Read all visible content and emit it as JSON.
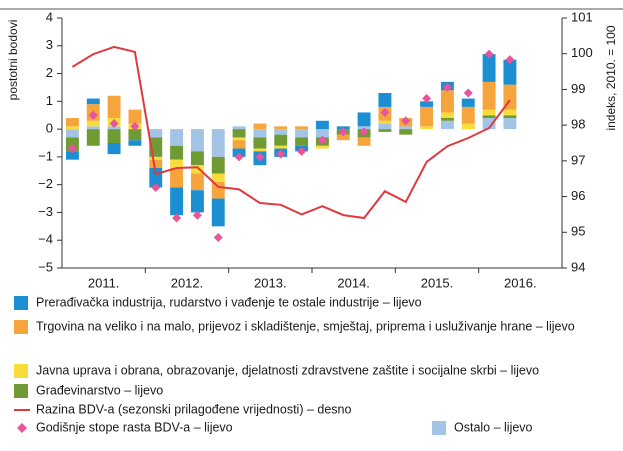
{
  "chart_data": {
    "type": "stacked-bar-line",
    "y_label": "postotni bodovi",
    "y2_label": "indeks, 2010. = 100",
    "years": [
      "2011.",
      "2012.",
      "2013.",
      "2014.",
      "2015.",
      "2016."
    ],
    "ylim": [
      -5,
      4
    ],
    "yticks": [
      {
        "value": -5,
        "label": "−5"
      },
      {
        "value": -4,
        "label": "−4"
      },
      {
        "value": -3,
        "label": "−3"
      },
      {
        "value": -2,
        "label": "−2"
      },
      {
        "value": -1,
        "label": "−1"
      },
      0,
      1,
      2,
      3,
      4
    ],
    "y2lim": [
      94,
      101
    ],
    "y2ticks": [
      94,
      95,
      96,
      97,
      98,
      99,
      100,
      101
    ],
    "series": [
      {
        "name": "Prerađivačka industrija, rudarstvo i vađenje te ostale industrije – lijevo",
        "color": "#1b8fd2",
        "values": [
          -0.3,
          0.2,
          -0.4,
          -0.2,
          -0.7,
          -1.0,
          -0.8,
          -1.0,
          -0.3,
          -0.5,
          -0.3,
          -0.2,
          0.3,
          0.1,
          0.5,
          0.5,
          0.0,
          0.2,
          0.3,
          0.3,
          1.0,
          0.9
        ]
      },
      {
        "name": "Trgovina na veliko i na malo, prijevoz i skladištenje, smještaj, priprema i usluživanje hrane – lijevo",
        "color": "#f6a43c",
        "values": [
          0.3,
          0.6,
          0.8,
          0.5,
          -0.3,
          -0.7,
          -0.6,
          -0.6,
          -0.3,
          0.2,
          0.1,
          0.1,
          0.0,
          -0.2,
          -0.3,
          0.5,
          0.3,
          0.7,
          0.8,
          0.6,
          1.0,
          0.9
        ]
      },
      {
        "name": "Javna uprava i obrana, obrazovanje, djelatnosti zdravstvene zaštite i socijalne skrbi – lijevo",
        "color": "#f8dc3c",
        "values": [
          0.1,
          0.2,
          0.3,
          0.2,
          -0.1,
          -0.3,
          -0.3,
          -0.3,
          -0.1,
          -0.1,
          -0.1,
          0.0,
          -0.1,
          0.0,
          0.0,
          0.1,
          0.0,
          0.1,
          0.2,
          0.2,
          0.2,
          0.2
        ]
      },
      {
        "name": "Građevinarstvo – lijevo",
        "color": "#6f9a34",
        "values": [
          -0.5,
          -0.6,
          -0.5,
          -0.4,
          -0.7,
          -0.5,
          -0.5,
          -0.6,
          -0.3,
          -0.4,
          -0.4,
          -0.3,
          -0.3,
          -0.2,
          -0.3,
          -0.1,
          -0.2,
          0.0,
          0.1,
          0.0,
          0.1,
          0.1
        ]
      },
      {
        "name": "Razina BDV-a (sezonski prilagođene vrijednosti) – desno",
        "color": "#e0393e",
        "axis": "y2",
        "kind": "line",
        "values": [
          99.63,
          99.99,
          100.19,
          100.05,
          96.63,
          96.8,
          96.82,
          96.27,
          96.2,
          95.82,
          95.77,
          95.5,
          95.73,
          95.48,
          95.4,
          96.15,
          95.85,
          96.97,
          97.41,
          97.64,
          97.92,
          98.7
        ]
      },
      {
        "name": "Godišnje stope rasta BDV-a – lijevo",
        "color": "#e5569c",
        "kind": "marker",
        "values": [
          -0.7,
          0.5,
          0.2,
          0.1,
          -2.1,
          -3.2,
          -3.1,
          -3.9,
          -1.0,
          -1.0,
          -0.9,
          -0.8,
          -0.4,
          -0.1,
          -0.1,
          0.6,
          0.3,
          1.1,
          1.5,
          1.3,
          2.7,
          2.5
        ]
      },
      {
        "name": "Ostalo – lijevo",
        "color": "#a4c4e6",
        "values": [
          -0.3,
          0.1,
          0.1,
          0.0,
          -0.3,
          -0.6,
          -0.8,
          -1.0,
          0.1,
          -0.3,
          -0.2,
          -0.3,
          -0.3,
          0.0,
          0.1,
          0.2,
          0.1,
          0.0,
          0.3,
          0.0,
          0.4,
          0.4
        ]
      }
    ]
  }
}
